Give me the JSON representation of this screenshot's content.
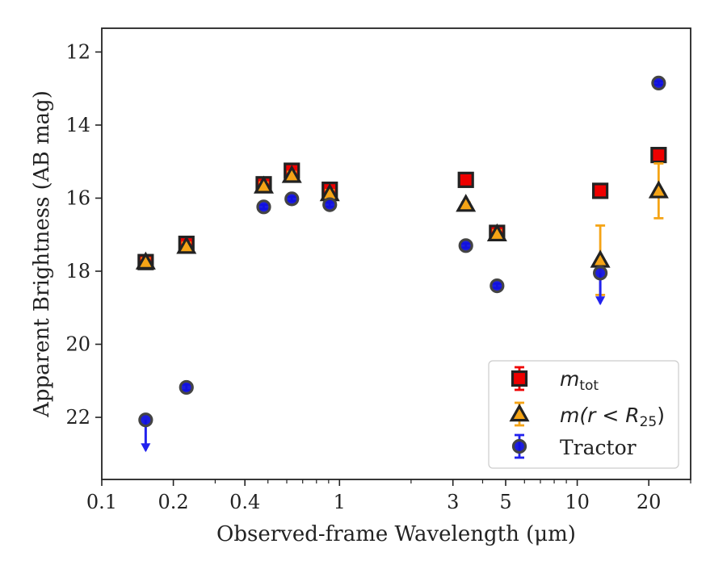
{
  "chart_data": {
    "type": "scatter",
    "xlabel": "Observed-frame Wavelength (μm)",
    "ylabel": "Apparent Brightness (AB mag)",
    "x_scale": "log",
    "xlim": [
      0.1,
      30
    ],
    "ylim": [
      23.7,
      11.35
    ],
    "y_inverted": true,
    "x_ticks": [
      {
        "value": 0.1,
        "label": "0.1"
      },
      {
        "value": 0.2,
        "label": "0.2"
      },
      {
        "value": 0.4,
        "label": "0.4"
      },
      {
        "value": 1,
        "label": "1"
      },
      {
        "value": 3,
        "label": "3"
      },
      {
        "value": 5,
        "label": "5"
      },
      {
        "value": 10,
        "label": "10"
      },
      {
        "value": 20,
        "label": "20"
      }
    ],
    "y_ticks": [
      {
        "value": 12,
        "label": "12"
      },
      {
        "value": 14,
        "label": "14"
      },
      {
        "value": 16,
        "label": "16"
      },
      {
        "value": 18,
        "label": "18"
      },
      {
        "value": 20,
        "label": "20"
      },
      {
        "value": 22,
        "label": "22"
      }
    ],
    "grid": false,
    "legend_position": "lower-right",
    "series": [
      {
        "name": "m_tot",
        "label_main": "m",
        "label_sub": "tot",
        "marker": "square",
        "face_color": "#ee0000",
        "edge_color": "#222222",
        "err_color": "#ee0000",
        "points": [
          {
            "x": 0.153,
            "y": 17.75,
            "err": 0.15
          },
          {
            "x": 0.227,
            "y": 17.25,
            "err": 0.15
          },
          {
            "x": 0.48,
            "y": 15.62,
            "err": 0.15
          },
          {
            "x": 0.63,
            "y": 15.25,
            "err": 0.15
          },
          {
            "x": 0.91,
            "y": 15.77,
            "err": 0.15
          },
          {
            "x": 3.4,
            "y": 15.5,
            "err": 0.08
          },
          {
            "x": 4.6,
            "y": 16.95,
            "err": 0.15
          },
          {
            "x": 12.5,
            "y": 15.8,
            "err": 0.08
          },
          {
            "x": 22.0,
            "y": 14.82,
            "err": 0.1
          }
        ]
      },
      {
        "name": "m(r < R25)",
        "label_text": "m(r < R",
        "label_sub": "25",
        "label_end": ")",
        "marker": "triangle",
        "face_color": "#f5a416",
        "edge_color": "#222222",
        "err_color": "#f5a416",
        "points": [
          {
            "x": 0.153,
            "y": 17.75,
            "err": 0.1
          },
          {
            "x": 0.227,
            "y": 17.32,
            "err": 0.1
          },
          {
            "x": 0.48,
            "y": 15.67,
            "err": 0.1
          },
          {
            "x": 0.63,
            "y": 15.38,
            "err": 0.1
          },
          {
            "x": 0.91,
            "y": 15.88,
            "err": 0.1
          },
          {
            "x": 3.4,
            "y": 16.17,
            "err": 0.05
          },
          {
            "x": 4.6,
            "y": 16.98,
            "err": 0.1
          },
          {
            "x": 12.5,
            "y": 17.7,
            "err": 0.95
          },
          {
            "x": 22.0,
            "y": 15.8,
            "err": 0.75
          }
        ]
      },
      {
        "name": "Tractor",
        "marker": "circle",
        "face_color": "#1111dd",
        "edge_color": "#444444",
        "err_color": "#2222ee",
        "points": [
          {
            "x": 0.153,
            "y": 22.07,
            "upper_limit": true
          },
          {
            "x": 0.227,
            "y": 21.18,
            "err": 0.08
          },
          {
            "x": 0.48,
            "y": 16.24,
            "err": 0.06
          },
          {
            "x": 0.63,
            "y": 16.02,
            "err": 0.06
          },
          {
            "x": 0.91,
            "y": 16.18,
            "err": 0.06
          },
          {
            "x": 3.4,
            "y": 17.3,
            "err": 0.06
          },
          {
            "x": 4.6,
            "y": 18.4,
            "err": 0.06
          },
          {
            "x": 12.5,
            "y": 18.05,
            "upper_limit": true
          },
          {
            "x": 22.0,
            "y": 12.85,
            "err": 0.05
          }
        ]
      }
    ],
    "legend": {
      "tractor_label": "Tractor"
    }
  }
}
